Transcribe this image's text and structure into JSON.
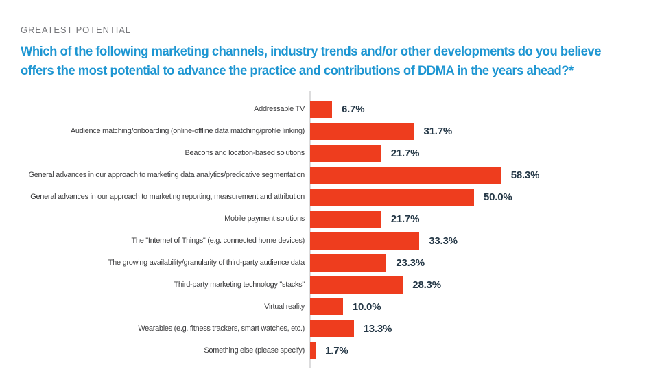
{
  "page": {
    "eyebrow": "GREATEST POTENTIAL",
    "question_line1": "Which of the following marketing channels, industry trends and/or other developments do you believe",
    "question_line2": "offers the most potential to advance the practice and contributions of DDMA in the years ahead?*"
  },
  "colors": {
    "bar": "#ee3d1e",
    "question": "#1e96d2",
    "eyebrow": "#76777b",
    "category_label": "#3c3c3e",
    "value_label": "#243746",
    "axis_line": "#dcdcdd"
  },
  "chart_data": {
    "type": "bar",
    "orientation": "horizontal",
    "title": "GREATEST POTENTIAL",
    "xlabel": "",
    "ylabel": "",
    "xlim": [
      0,
      100
    ],
    "grid": false,
    "legend": false,
    "categories": [
      "Addressable TV",
      "Audience matching/onboarding (online-offline data matching/profile linking)",
      "Beacons and location-based solutions",
      "General advances in our approach to marketing data analytics/predicative segmentation",
      "General advances in our approach to marketing reporting, measurement and attribution",
      "Mobile payment solutions",
      "The \"Internet of Things\" (e.g. connected home devices)",
      "The growing availability/granularity of third-party audience data",
      "Third-party marketing technology \"stacks\"",
      "Virtual reality",
      "Wearables (e.g. fitness trackers, smart watches, etc.)",
      "Something else (please specify)"
    ],
    "values": [
      6.7,
      31.7,
      21.7,
      58.3,
      50.0,
      21.7,
      33.3,
      23.3,
      28.3,
      10.0,
      13.3,
      1.7
    ],
    "value_labels": [
      "6.7%",
      "31.7%",
      "21.7%",
      "58.3%",
      "50.0%",
      "21.7%",
      "33.3%",
      "23.3%",
      "28.3%",
      "10.0%",
      "13.3%",
      "1.7%"
    ]
  }
}
